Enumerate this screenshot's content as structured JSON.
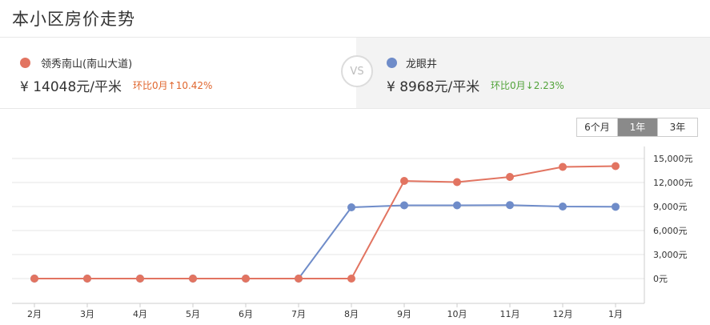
{
  "header": {
    "title": "本小区房价走势"
  },
  "compare": {
    "left": {
      "name": "领秀南山(南山大道)",
      "price": "¥ 14048元/平米",
      "change": "环比0月↑10.42%",
      "dot_color": "#e27461",
      "change_color": "#e0662e"
    },
    "vs_label": "VS",
    "right": {
      "name": "龙眼井",
      "price": "¥ 8968元/平米",
      "change": "环比0月↓2.23%",
      "dot_color": "#6f8cc9",
      "change_color": "#52a33a"
    }
  },
  "range_tabs": [
    {
      "label": "6个月",
      "active": false
    },
    {
      "label": "1年",
      "active": true
    },
    {
      "label": "3年",
      "active": false
    }
  ],
  "chart_data": {
    "type": "line",
    "x": [
      "2月",
      "3月",
      "4月",
      "5月",
      "6月",
      "7月",
      "8月",
      "9月",
      "10月",
      "11月",
      "12月",
      "1月"
    ],
    "y_ticks": [
      "0元",
      "3,000元",
      "6,000元",
      "9,000元",
      "12,000元",
      "15,000元"
    ],
    "ylim": [
      0,
      15000
    ],
    "y_axis_position": "right",
    "grid": true,
    "series": [
      {
        "color": "#6f8cc9",
        "values": [
          0,
          0,
          0,
          0,
          0,
          0,
          8900,
          9150,
          9150,
          9180,
          9000,
          8968
        ]
      },
      {
        "color": "#e27461",
        "values": [
          0,
          0,
          0,
          0,
          0,
          0,
          0,
          12200,
          12050,
          12700,
          13950,
          14048
        ]
      }
    ]
  }
}
